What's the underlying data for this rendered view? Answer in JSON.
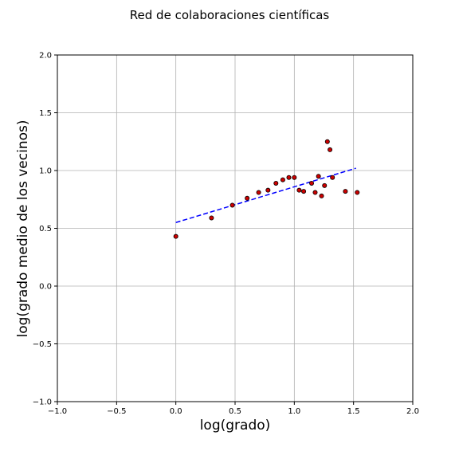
{
  "chart_data": {
    "type": "scatter",
    "title": "Red de colaboraciones científicas",
    "xlabel": "log(grado)",
    "ylabel": "log(grado medio de los vecinos)",
    "xlim": [
      -1.0,
      2.0
    ],
    "ylim": [
      -1.0,
      2.0
    ],
    "xticks": [
      -1.0,
      -0.5,
      0.0,
      0.5,
      1.0,
      1.5,
      2.0
    ],
    "yticks": [
      -1.0,
      -0.5,
      0.0,
      0.5,
      1.0,
      1.5,
      2.0
    ],
    "xtick_labels": [
      "−1.0",
      "−0.5",
      "0.0",
      "0.5",
      "1.0",
      "1.5",
      "2.0"
    ],
    "ytick_labels": [
      "−1.0",
      "−0.5",
      "0.0",
      "0.5",
      "1.0",
      "1.5",
      "2.0"
    ],
    "grid": true,
    "series": [
      {
        "marker": "circle",
        "color": "#cc0000",
        "edgecolor": "#000000",
        "x": [
          0.0,
          0.301,
          0.477,
          0.602,
          0.699,
          0.778,
          0.845,
          0.903,
          0.954,
          1.0,
          1.041,
          1.079,
          1.146,
          1.176,
          1.204,
          1.23,
          1.255,
          1.279,
          1.301,
          1.322,
          1.431,
          1.531
        ],
        "y": [
          0.43,
          0.59,
          0.7,
          0.76,
          0.81,
          0.83,
          0.89,
          0.92,
          0.94,
          0.94,
          0.83,
          0.82,
          0.89,
          0.81,
          0.95,
          0.78,
          0.87,
          1.25,
          1.18,
          0.94,
          0.82,
          0.81
        ]
      }
    ],
    "fit_line": {
      "style": "dashed",
      "color": "#0000ff",
      "x": [
        0.0,
        1.52
      ],
      "y": [
        0.55,
        1.02
      ]
    }
  }
}
